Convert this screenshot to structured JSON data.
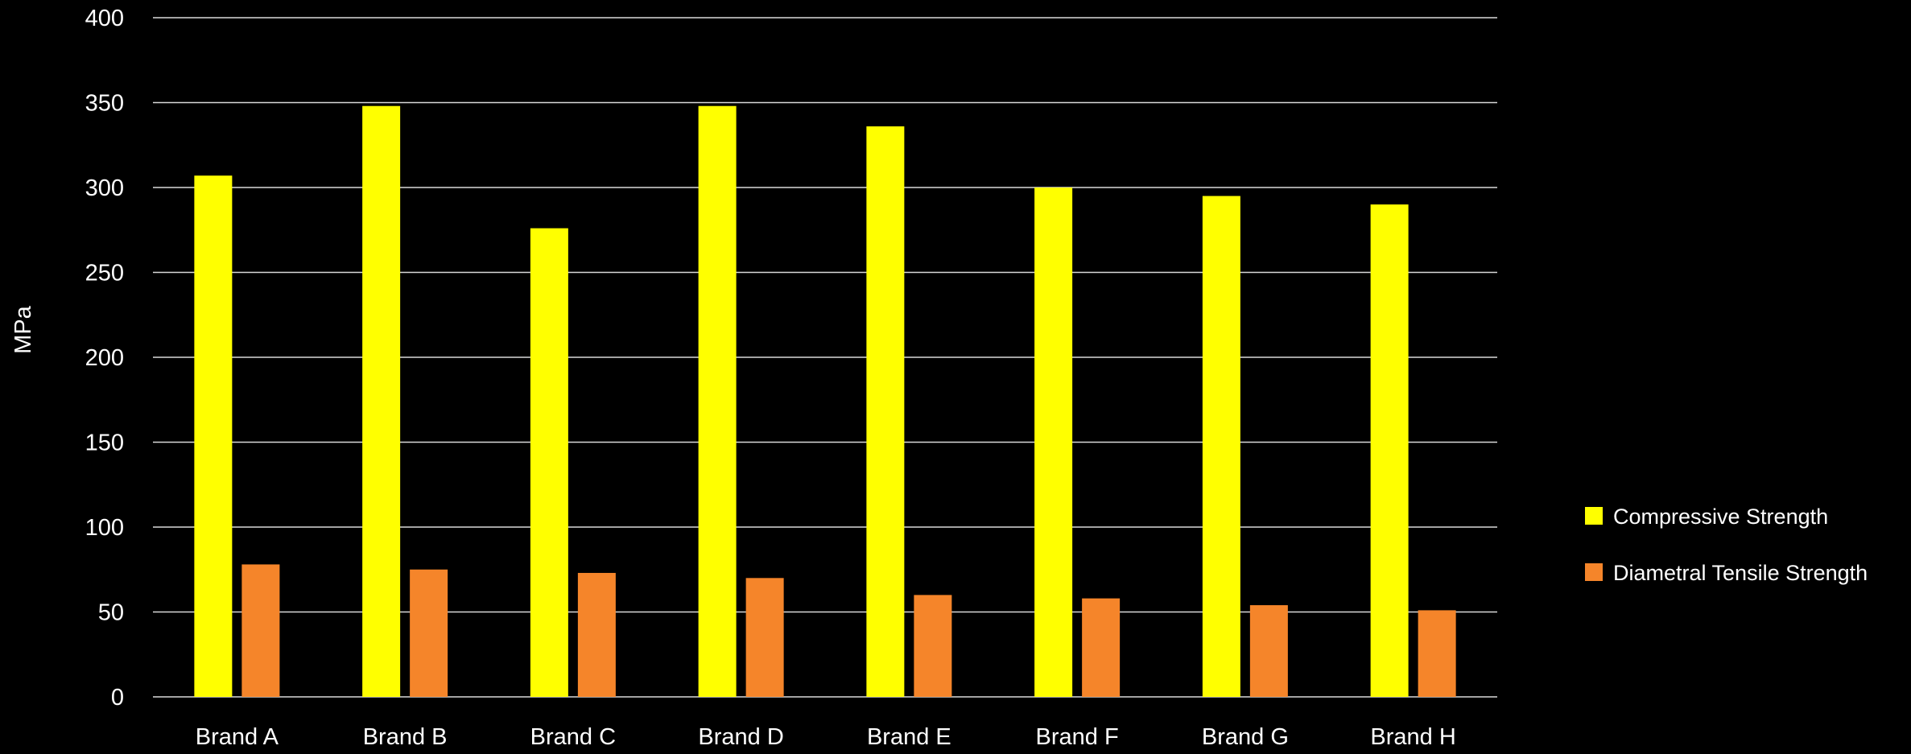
{
  "chart_data": {
    "type": "bar",
    "title": "",
    "xlabel": "",
    "ylabel": "MPa",
    "ylim": [
      0,
      400
    ],
    "yticks": [
      0,
      50,
      100,
      150,
      200,
      250,
      300,
      350,
      400
    ],
    "grid": true,
    "legend_position": "right",
    "background_color": "#000000",
    "text_color": "#ffffff",
    "categories": [
      "Brand A",
      "Brand B",
      "Brand C",
      "Brand D",
      "Brand E",
      "Brand F",
      "Brand G",
      "Brand H"
    ],
    "series": [
      {
        "name": "Compressive Strength",
        "color": "#ffff00",
        "values": [
          307,
          348,
          276,
          348,
          336,
          300,
          295,
          290
        ]
      },
      {
        "name": "Diametral Tensile Strength",
        "color": "#f5852a",
        "values": [
          78,
          75,
          73,
          70,
          60,
          58,
          54,
          51
        ]
      }
    ]
  }
}
